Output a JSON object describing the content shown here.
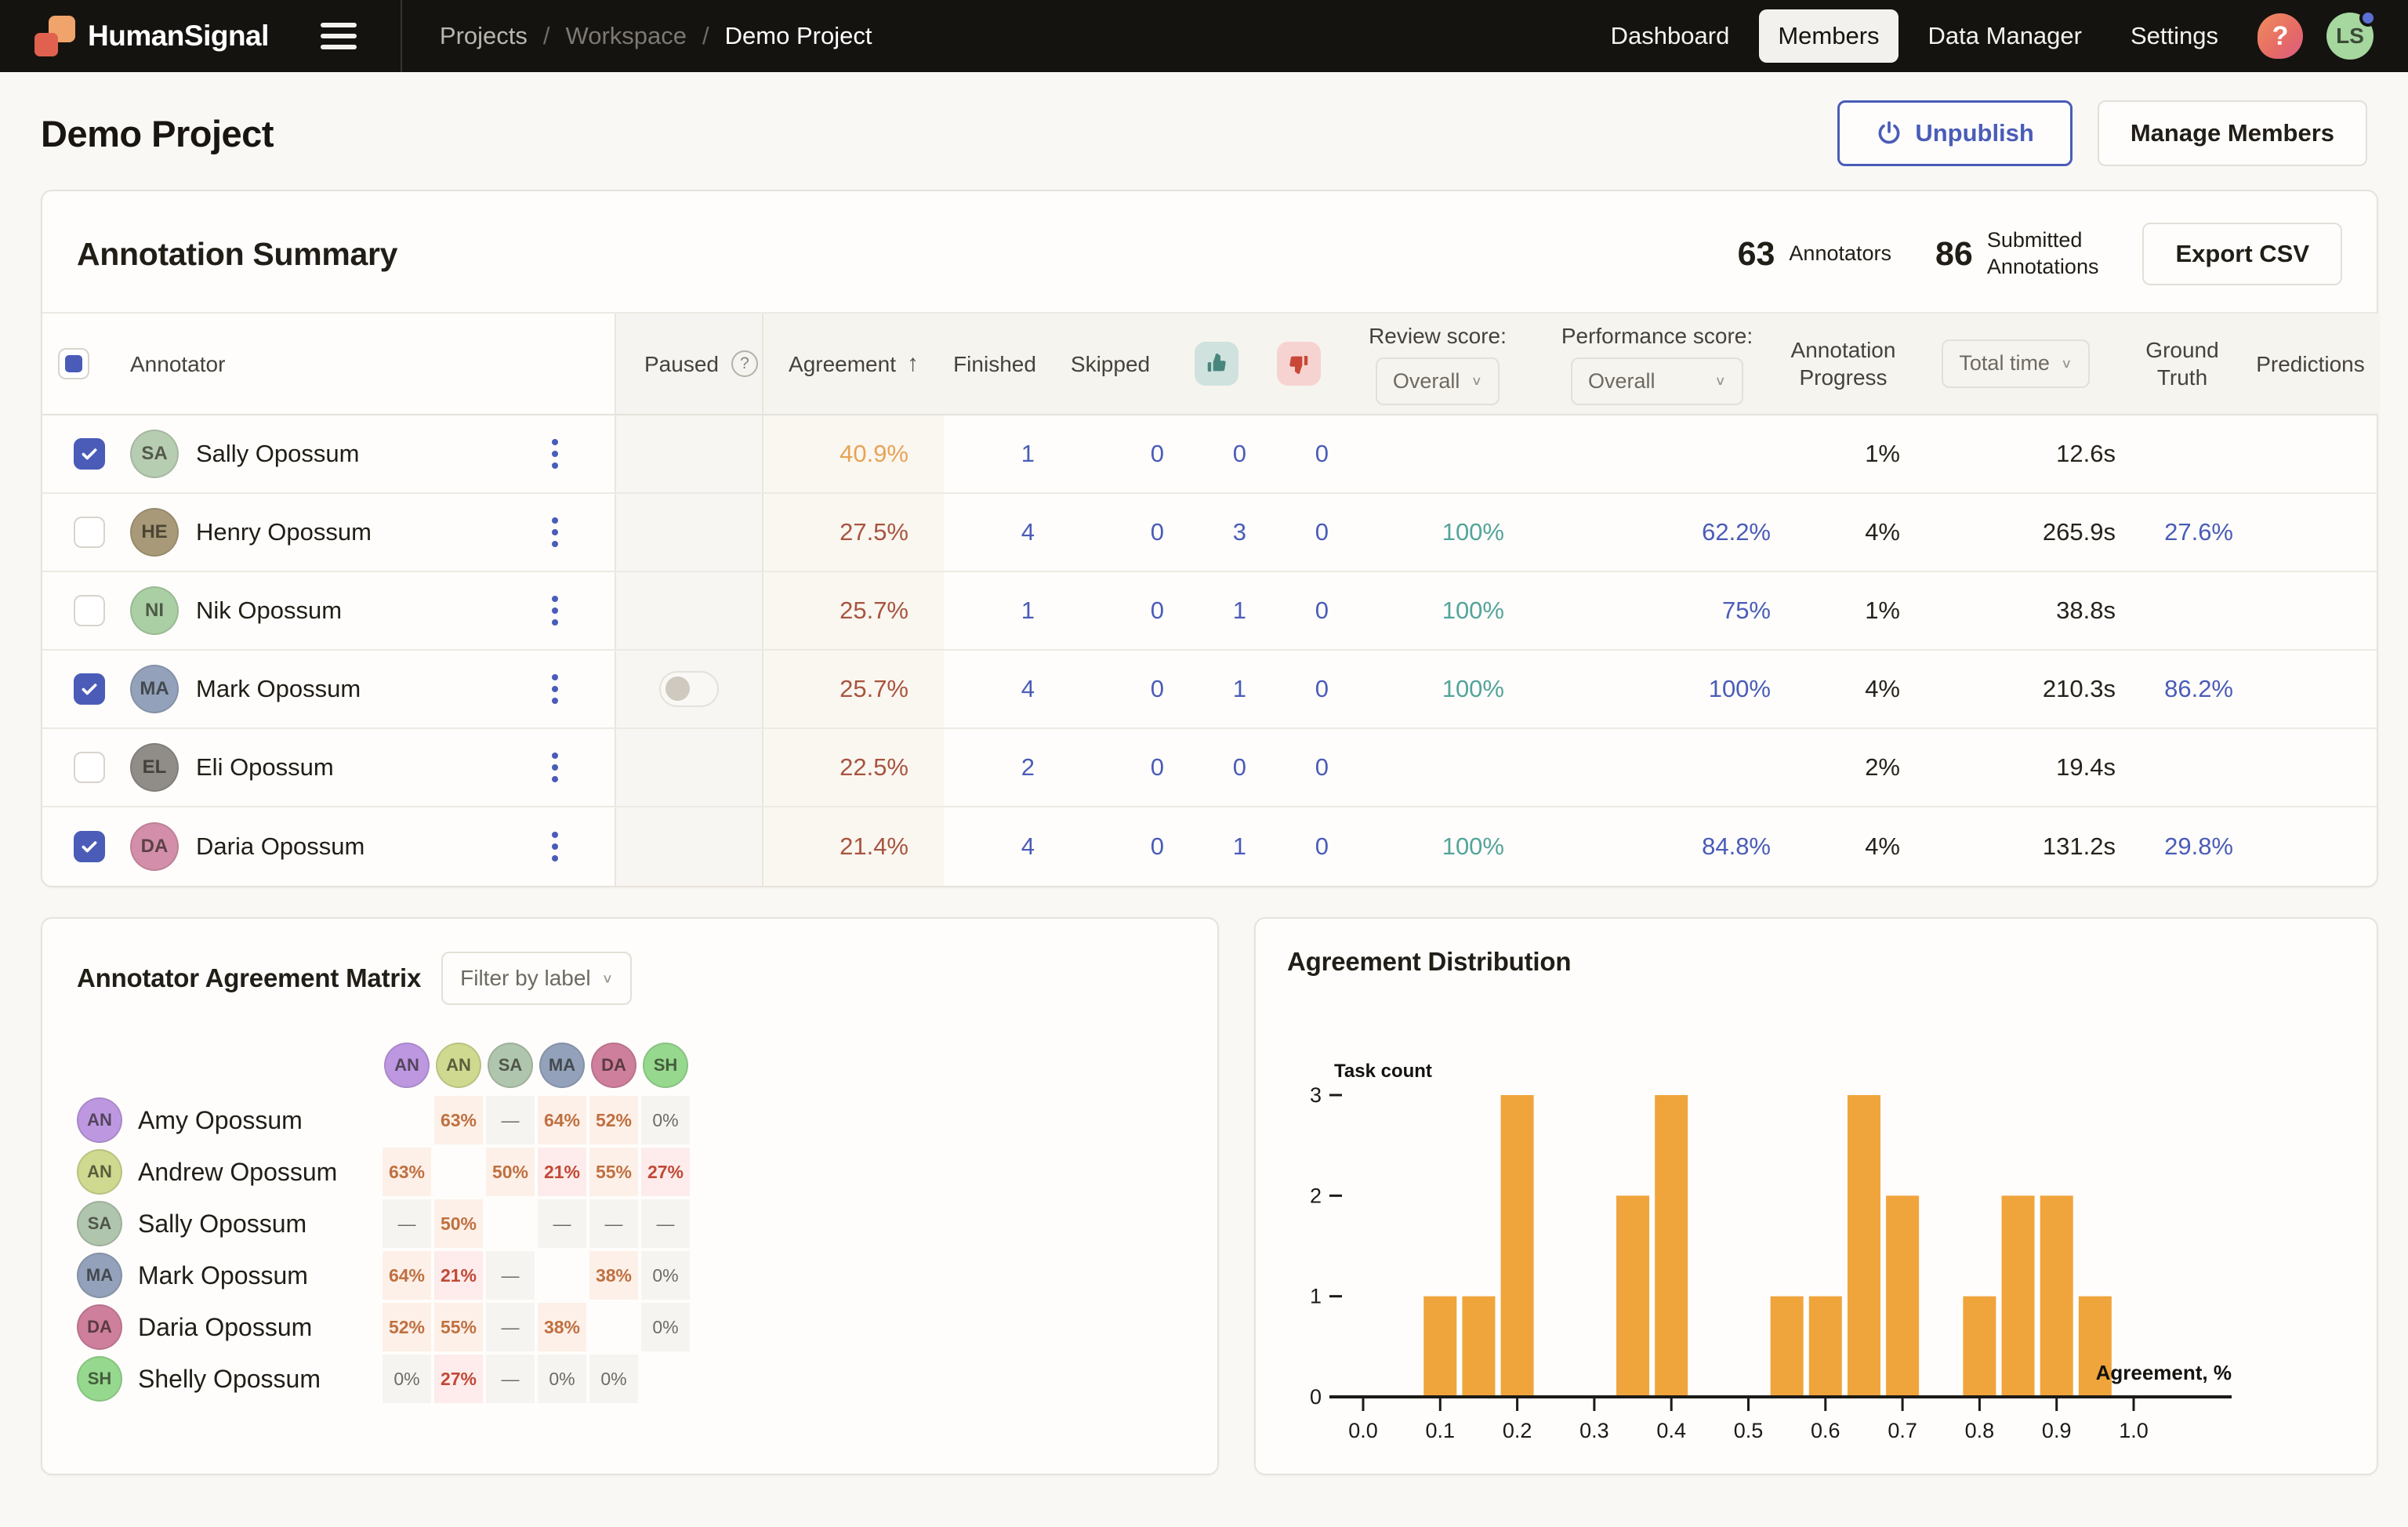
{
  "topbar": {
    "brand": "HumanSignal",
    "breadcrumbs": [
      "Projects",
      "Workspace",
      "Demo Project"
    ],
    "nav": {
      "dashboard": "Dashboard",
      "members": "Members",
      "data_manager": "Data Manager",
      "settings": "Settings"
    },
    "help_glyph": "?",
    "avatar_initials": "LS"
  },
  "page": {
    "title": "Demo Project",
    "unpublish_label": "Unpublish",
    "manage_members_label": "Manage Members"
  },
  "summary": {
    "title": "Annotation Summary",
    "annotators_count": "63",
    "annotators_label": "Annotators",
    "submitted_count": "86",
    "submitted_label": "Submitted\nAnnotations",
    "export_label": "Export CSV"
  },
  "table": {
    "headers": {
      "annotator": "Annotator",
      "paused": "Paused",
      "agreement": "Agreement",
      "sort_arrow": "↑",
      "finished": "Finished",
      "skipped": "Skipped",
      "review_label": "Review score:",
      "review_value": "Overall",
      "performance_label": "Performance score:",
      "performance_value": "Overall",
      "progress": "Annotation Progress",
      "total_time": "Total time",
      "ground_truth": "Ground Truth",
      "predictions": "Predictions"
    },
    "rows": [
      {
        "name": "Sally Opossum",
        "initials": "SA",
        "avatar_color": "#b7cdb2",
        "checked": true,
        "paused_toggle": false,
        "agreement": "40.9%",
        "agreement_color": "#e8a355",
        "finished": "1",
        "skipped": "0",
        "accepted": "0",
        "rejected": "0",
        "review": "",
        "performance": "",
        "progress": "1%",
        "total_time": "12.6s",
        "ground_truth": "",
        "predictions": ""
      },
      {
        "name": "Henry Opossum",
        "initials": "HE",
        "avatar_color": "#a89a79",
        "checked": false,
        "paused_toggle": false,
        "agreement": "27.5%",
        "agreement_color": "#a8543f",
        "finished": "4",
        "skipped": "0",
        "accepted": "3",
        "rejected": "0",
        "review": "100%",
        "performance": "62.2%",
        "progress": "4%",
        "total_time": "265.9s",
        "ground_truth": "27.6%",
        "predictions": ""
      },
      {
        "name": "Nik Opossum",
        "initials": "NI",
        "avatar_color": "#abcfa4",
        "checked": false,
        "paused_toggle": false,
        "agreement": "25.7%",
        "agreement_color": "#a8543f",
        "finished": "1",
        "skipped": "0",
        "accepted": "1",
        "rejected": "0",
        "review": "100%",
        "performance": "75%",
        "progress": "1%",
        "total_time": "38.8s",
        "ground_truth": "",
        "predictions": ""
      },
      {
        "name": "Mark Opossum",
        "initials": "MA",
        "avatar_color": "#93a2ba",
        "checked": true,
        "paused_toggle": true,
        "agreement": "25.7%",
        "agreement_color": "#a8543f",
        "finished": "4",
        "skipped": "0",
        "accepted": "1",
        "rejected": "0",
        "review": "100%",
        "performance": "100%",
        "progress": "4%",
        "total_time": "210.3s",
        "ground_truth": "86.2%",
        "predictions": ""
      },
      {
        "name": "Eli Opossum",
        "initials": "EL",
        "avatar_color": "#908c88",
        "checked": false,
        "paused_toggle": false,
        "agreement": "22.5%",
        "agreement_color": "#a8543f",
        "finished": "2",
        "skipped": "0",
        "accepted": "0",
        "rejected": "0",
        "review": "",
        "performance": "",
        "progress": "2%",
        "total_time": "19.4s",
        "ground_truth": "",
        "predictions": ""
      },
      {
        "name": "Daria Opossum",
        "initials": "DA",
        "avatar_color": "#d38fa9",
        "checked": true,
        "paused_toggle": false,
        "agreement": "21.4%",
        "agreement_color": "#a8543f",
        "finished": "4",
        "skipped": "0",
        "accepted": "1",
        "rejected": "0",
        "review": "100%",
        "performance": "84.8%",
        "progress": "4%",
        "total_time": "131.2s",
        "ground_truth": "29.8%",
        "predictions": ""
      }
    ]
  },
  "matrix": {
    "title": "Annotator Agreement Matrix",
    "filter_label": "Filter by label",
    "columns": [
      {
        "initials": "AN",
        "color": "#bd98e0"
      },
      {
        "initials": "AN",
        "color": "#cfd98f"
      },
      {
        "initials": "SA",
        "color": "#b0c5ad"
      },
      {
        "initials": "MA",
        "color": "#93a2ba"
      },
      {
        "initials": "DA",
        "color": "#ce7f9c"
      },
      {
        "initials": "SH",
        "color": "#97d88f"
      }
    ],
    "rows": [
      {
        "name": "Amy Opossum",
        "initials": "AN",
        "color": "#bd98e0",
        "cells": [
          {
            "t": "",
            "k": "diag"
          },
          {
            "t": "63%",
            "k": "mid"
          },
          {
            "t": "—",
            "k": "dash"
          },
          {
            "t": "64%",
            "k": "mid"
          },
          {
            "t": "52%",
            "k": "mid"
          },
          {
            "t": "0%",
            "k": "zero"
          }
        ]
      },
      {
        "name": "Andrew Opossum",
        "initials": "AN",
        "color": "#cfd98f",
        "cells": [
          {
            "t": "63%",
            "k": "mid"
          },
          {
            "t": "",
            "k": "diag"
          },
          {
            "t": "50%",
            "k": "mid"
          },
          {
            "t": "21%",
            "k": "low"
          },
          {
            "t": "55%",
            "k": "mid"
          },
          {
            "t": "27%",
            "k": "low"
          }
        ]
      },
      {
        "name": "Sally Opossum",
        "initials": "SA",
        "color": "#b0c5ad",
        "cells": [
          {
            "t": "—",
            "k": "dash"
          },
          {
            "t": "50%",
            "k": "mid"
          },
          {
            "t": "",
            "k": "diag"
          },
          {
            "t": "—",
            "k": "dash"
          },
          {
            "t": "—",
            "k": "dash"
          },
          {
            "t": "—",
            "k": "dash"
          }
        ]
      },
      {
        "name": "Mark Opossum",
        "initials": "MA",
        "color": "#93a2ba",
        "cells": [
          {
            "t": "64%",
            "k": "mid"
          },
          {
            "t": "21%",
            "k": "low"
          },
          {
            "t": "—",
            "k": "dash"
          },
          {
            "t": "",
            "k": "diag"
          },
          {
            "t": "38%",
            "k": "mid"
          },
          {
            "t": "0%",
            "k": "zero"
          }
        ]
      },
      {
        "name": "Daria Opossum",
        "initials": "DA",
        "color": "#ce7f9c",
        "cells": [
          {
            "t": "52%",
            "k": "mid"
          },
          {
            "t": "55%",
            "k": "mid"
          },
          {
            "t": "—",
            "k": "dash"
          },
          {
            "t": "38%",
            "k": "mid"
          },
          {
            "t": "",
            "k": "diag"
          },
          {
            "t": "0%",
            "k": "zero"
          }
        ]
      },
      {
        "name": "Shelly Opossum",
        "initials": "SH",
        "color": "#97d88f",
        "cells": [
          {
            "t": "0%",
            "k": "zero"
          },
          {
            "t": "27%",
            "k": "low"
          },
          {
            "t": "—",
            "k": "dash"
          },
          {
            "t": "0%",
            "k": "zero"
          },
          {
            "t": "0%",
            "k": "zero"
          },
          {
            "t": "",
            "k": "diag"
          }
        ]
      }
    ]
  },
  "chart_data": {
    "type": "bar",
    "title": "Agreement Distribution",
    "xlabel": "Agreement, %",
    "ylabel": "Task count",
    "xlim": [
      0.0,
      1.0
    ],
    "ylim": [
      0,
      3
    ],
    "x_ticks": [
      "0.0",
      "0.1",
      "0.2",
      "0.3",
      "0.4",
      "0.5",
      "0.6",
      "0.7",
      "0.8",
      "0.9",
      "1.0"
    ],
    "y_ticks": [
      0,
      1,
      2,
      3
    ],
    "bin_width": 0.05,
    "bar_color": "#f0a43c",
    "bins": [
      {
        "x": 0.1,
        "count": 1
      },
      {
        "x": 0.15,
        "count": 1
      },
      {
        "x": 0.2,
        "count": 3
      },
      {
        "x": 0.35,
        "count": 2
      },
      {
        "x": 0.4,
        "count": 3
      },
      {
        "x": 0.55,
        "count": 1
      },
      {
        "x": 0.6,
        "count": 1
      },
      {
        "x": 0.65,
        "count": 3
      },
      {
        "x": 0.7,
        "count": 2
      },
      {
        "x": 0.8,
        "count": 1
      },
      {
        "x": 0.85,
        "count": 2
      },
      {
        "x": 0.9,
        "count": 2
      },
      {
        "x": 0.95,
        "count": 1
      }
    ]
  }
}
